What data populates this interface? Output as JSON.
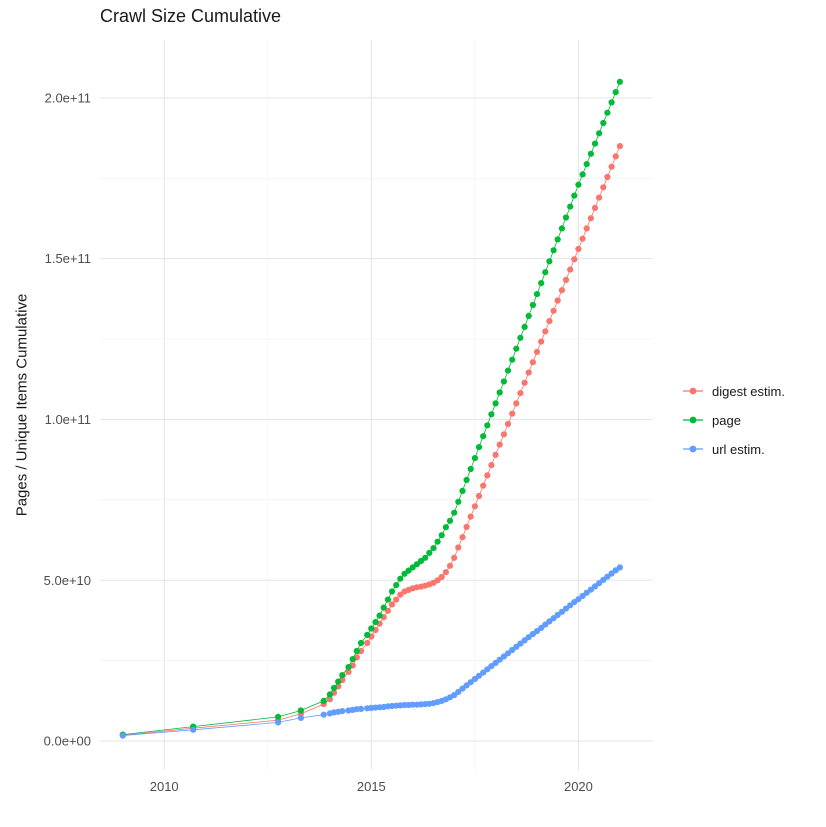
{
  "chart_data": {
    "type": "line",
    "style": "points+line",
    "title": "Crawl Size Cumulative",
    "xlabel": "",
    "ylabel": "Pages / Unique Items Cumulative",
    "value_unit": "1e9 (values below are billions of pages / unique items)",
    "grid": true,
    "legend_position": "right",
    "xlim": [
      2008.45,
      2021.8
    ],
    "ylim": [
      -9,
      218
    ],
    "x_ticks": [
      {
        "value": 2010,
        "label": "2010"
      },
      {
        "value": 2015,
        "label": "2015"
      },
      {
        "value": 2020,
        "label": "2020"
      }
    ],
    "y_ticks": [
      {
        "value": 0,
        "label": "0.0e+00"
      },
      {
        "value": 50,
        "label": "5.0e+10"
      },
      {
        "value": 100,
        "label": "1.0e+11"
      },
      {
        "value": 150,
        "label": "1.5e+11"
      },
      {
        "value": 200,
        "label": "2.0e+11"
      }
    ],
    "series": [
      {
        "name": "digest estim.",
        "color": "#F8766D",
        "points": [
          [
            2009.0,
            1.8
          ],
          [
            2010.7,
            4.0
          ],
          [
            2012.75,
            6.5
          ],
          [
            2013.3,
            8.5
          ],
          [
            2013.85,
            11.5
          ],
          [
            2014.0,
            13
          ],
          [
            2014.1,
            15
          ],
          [
            2014.2,
            17
          ],
          [
            2014.3,
            19
          ],
          [
            2014.45,
            21.5
          ],
          [
            2014.55,
            23.5
          ],
          [
            2014.65,
            26
          ],
          [
            2014.75,
            28
          ],
          [
            2014.9,
            30.5
          ],
          [
            2015.0,
            32.5
          ],
          [
            2015.1,
            34.5
          ],
          [
            2015.2,
            36.5
          ],
          [
            2015.3,
            38.5
          ],
          [
            2015.4,
            40.5
          ],
          [
            2015.5,
            42.5
          ],
          [
            2015.6,
            44
          ],
          [
            2015.7,
            45.5
          ],
          [
            2015.8,
            46.5
          ],
          [
            2015.9,
            47
          ],
          [
            2016.0,
            47.5
          ],
          [
            2016.1,
            47.8
          ],
          [
            2016.2,
            48
          ],
          [
            2016.3,
            48.3
          ],
          [
            2016.4,
            48.7
          ],
          [
            2016.5,
            49.2
          ],
          [
            2016.6,
            50
          ],
          [
            2016.7,
            51
          ],
          [
            2016.8,
            52.5
          ],
          [
            2016.9,
            54.5
          ],
          [
            2017.0,
            57
          ],
          [
            2017.1,
            60.2
          ],
          [
            2017.2,
            63.4
          ],
          [
            2017.3,
            66.6
          ],
          [
            2017.4,
            69.8
          ],
          [
            2017.5,
            73
          ],
          [
            2017.6,
            76.2
          ],
          [
            2017.7,
            79.4
          ],
          [
            2017.8,
            82.6
          ],
          [
            2017.9,
            85.8
          ],
          [
            2018.0,
            89
          ],
          [
            2018.1,
            92.2
          ],
          [
            2018.2,
            95.4
          ],
          [
            2018.3,
            98.6
          ],
          [
            2018.4,
            101.8
          ],
          [
            2018.5,
            105
          ],
          [
            2018.6,
            108.2
          ],
          [
            2018.7,
            111.4
          ],
          [
            2018.8,
            114.6
          ],
          [
            2018.9,
            117.8
          ],
          [
            2019.0,
            121
          ],
          [
            2019.1,
            124.2
          ],
          [
            2019.2,
            127.4
          ],
          [
            2019.3,
            130.6
          ],
          [
            2019.4,
            133.8
          ],
          [
            2019.5,
            137
          ],
          [
            2019.6,
            140.2
          ],
          [
            2019.7,
            143.4
          ],
          [
            2019.8,
            146.6
          ],
          [
            2019.9,
            149.8
          ],
          [
            2020.0,
            153
          ],
          [
            2020.1,
            156.2
          ],
          [
            2020.2,
            159.4
          ],
          [
            2020.3,
            162.6
          ],
          [
            2020.4,
            165.8
          ],
          [
            2020.5,
            169
          ],
          [
            2020.6,
            172.2
          ],
          [
            2020.7,
            175.4
          ],
          [
            2020.8,
            178.6
          ],
          [
            2020.9,
            181.8
          ],
          [
            2021.0,
            185
          ]
        ]
      },
      {
        "name": "page",
        "color": "#00BA38",
        "points": [
          [
            2009.0,
            2.0
          ],
          [
            2010.7,
            4.5
          ],
          [
            2012.75,
            7.5
          ],
          [
            2013.3,
            9.5
          ],
          [
            2013.85,
            12.5
          ],
          [
            2014.0,
            14.5
          ],
          [
            2014.1,
            16.5
          ],
          [
            2014.2,
            18.5
          ],
          [
            2014.3,
            20.5
          ],
          [
            2014.45,
            23
          ],
          [
            2014.55,
            25.5
          ],
          [
            2014.65,
            28
          ],
          [
            2014.75,
            30.5
          ],
          [
            2014.9,
            33
          ],
          [
            2015.0,
            35
          ],
          [
            2015.1,
            37
          ],
          [
            2015.2,
            39
          ],
          [
            2015.3,
            41.5
          ],
          [
            2015.4,
            44
          ],
          [
            2015.5,
            46.5
          ],
          [
            2015.6,
            48.5
          ],
          [
            2015.7,
            50.5
          ],
          [
            2015.8,
            52
          ],
          [
            2015.9,
            53
          ],
          [
            2016.0,
            54
          ],
          [
            2016.1,
            55
          ],
          [
            2016.2,
            56
          ],
          [
            2016.3,
            57
          ],
          [
            2016.4,
            58.5
          ],
          [
            2016.5,
            60
          ],
          [
            2016.6,
            62
          ],
          [
            2016.7,
            64
          ],
          [
            2016.8,
            66.5
          ],
          [
            2016.9,
            68.5
          ],
          [
            2017.0,
            71
          ],
          [
            2017.1,
            74.4
          ],
          [
            2017.2,
            77.8
          ],
          [
            2017.3,
            81.2
          ],
          [
            2017.4,
            84.6
          ],
          [
            2017.5,
            88
          ],
          [
            2017.6,
            91.4
          ],
          [
            2017.7,
            94.8
          ],
          [
            2017.8,
            98.2
          ],
          [
            2017.9,
            101.6
          ],
          [
            2018.0,
            105
          ],
          [
            2018.1,
            108.4
          ],
          [
            2018.2,
            111.8
          ],
          [
            2018.3,
            115.2
          ],
          [
            2018.4,
            118.6
          ],
          [
            2018.5,
            122
          ],
          [
            2018.6,
            125.4
          ],
          [
            2018.7,
            128.8
          ],
          [
            2018.8,
            132.2
          ],
          [
            2018.9,
            135.6
          ],
          [
            2019.0,
            139
          ],
          [
            2019.1,
            142.4
          ],
          [
            2019.2,
            145.8
          ],
          [
            2019.3,
            149.2
          ],
          [
            2019.4,
            152.6
          ],
          [
            2019.5,
            156
          ],
          [
            2019.6,
            159.4
          ],
          [
            2019.7,
            162.8
          ],
          [
            2019.8,
            166.2
          ],
          [
            2019.9,
            169.6
          ],
          [
            2020.0,
            173
          ],
          [
            2020.1,
            176.2
          ],
          [
            2020.2,
            179.4
          ],
          [
            2020.3,
            182.6
          ],
          [
            2020.4,
            185.8
          ],
          [
            2020.5,
            189
          ],
          [
            2020.6,
            192.2
          ],
          [
            2020.7,
            195.4
          ],
          [
            2020.8,
            198.6
          ],
          [
            2020.9,
            201.8
          ],
          [
            2021.0,
            205
          ]
        ]
      },
      {
        "name": "url estim.",
        "color": "#619CFF",
        "points": [
          [
            2009.0,
            1.7
          ],
          [
            2010.7,
            3.5
          ],
          [
            2012.75,
            5.8
          ],
          [
            2013.3,
            7.2
          ],
          [
            2013.85,
            8.2
          ],
          [
            2014.0,
            8.6
          ],
          [
            2014.1,
            8.9
          ],
          [
            2014.2,
            9.1
          ],
          [
            2014.3,
            9.3
          ],
          [
            2014.45,
            9.5
          ],
          [
            2014.55,
            9.7
          ],
          [
            2014.65,
            9.9
          ],
          [
            2014.75,
            10.0
          ],
          [
            2014.9,
            10.2
          ],
          [
            2015.0,
            10.3
          ],
          [
            2015.1,
            10.4
          ],
          [
            2015.2,
            10.5
          ],
          [
            2015.3,
            10.6
          ],
          [
            2015.4,
            10.8
          ],
          [
            2015.5,
            10.9
          ],
          [
            2015.6,
            11.0
          ],
          [
            2015.7,
            11.1
          ],
          [
            2015.8,
            11.2
          ],
          [
            2015.9,
            11.2
          ],
          [
            2016.0,
            11.3
          ],
          [
            2016.1,
            11.3
          ],
          [
            2016.2,
            11.4
          ],
          [
            2016.3,
            11.5
          ],
          [
            2016.4,
            11.6
          ],
          [
            2016.5,
            11.8
          ],
          [
            2016.6,
            12.1
          ],
          [
            2016.7,
            12.5
          ],
          [
            2016.8,
            13.0
          ],
          [
            2016.9,
            13.6
          ],
          [
            2017.0,
            14.3
          ],
          [
            2017.1,
            15.3
          ],
          [
            2017.2,
            16.3
          ],
          [
            2017.3,
            17.3
          ],
          [
            2017.4,
            18.3
          ],
          [
            2017.5,
            19.3
          ],
          [
            2017.6,
            20.3
          ],
          [
            2017.7,
            21.3
          ],
          [
            2017.8,
            22.3
          ],
          [
            2017.9,
            23.3
          ],
          [
            2018.0,
            24.3
          ],
          [
            2018.1,
            25.3
          ],
          [
            2018.2,
            26.3
          ],
          [
            2018.3,
            27.3
          ],
          [
            2018.4,
            28.3
          ],
          [
            2018.5,
            29.3
          ],
          [
            2018.6,
            30.3
          ],
          [
            2018.7,
            31.3
          ],
          [
            2018.8,
            32.3
          ],
          [
            2018.9,
            33.3
          ],
          [
            2019.0,
            34.2
          ],
          [
            2019.1,
            35.2
          ],
          [
            2019.2,
            36.2
          ],
          [
            2019.3,
            37.2
          ],
          [
            2019.4,
            38.2
          ],
          [
            2019.5,
            39.2
          ],
          [
            2019.6,
            40.2
          ],
          [
            2019.7,
            41.2
          ],
          [
            2019.8,
            42.2
          ],
          [
            2019.9,
            43.2
          ],
          [
            2020.0,
            44.1
          ],
          [
            2020.1,
            45.1
          ],
          [
            2020.2,
            46.1
          ],
          [
            2020.3,
            47.1
          ],
          [
            2020.4,
            48.1
          ],
          [
            2020.5,
            49.1
          ],
          [
            2020.6,
            50.1
          ],
          [
            2020.7,
            51.1
          ],
          [
            2020.8,
            52.1
          ],
          [
            2020.9,
            53.1
          ],
          [
            2021.0,
            54
          ]
        ]
      }
    ]
  }
}
